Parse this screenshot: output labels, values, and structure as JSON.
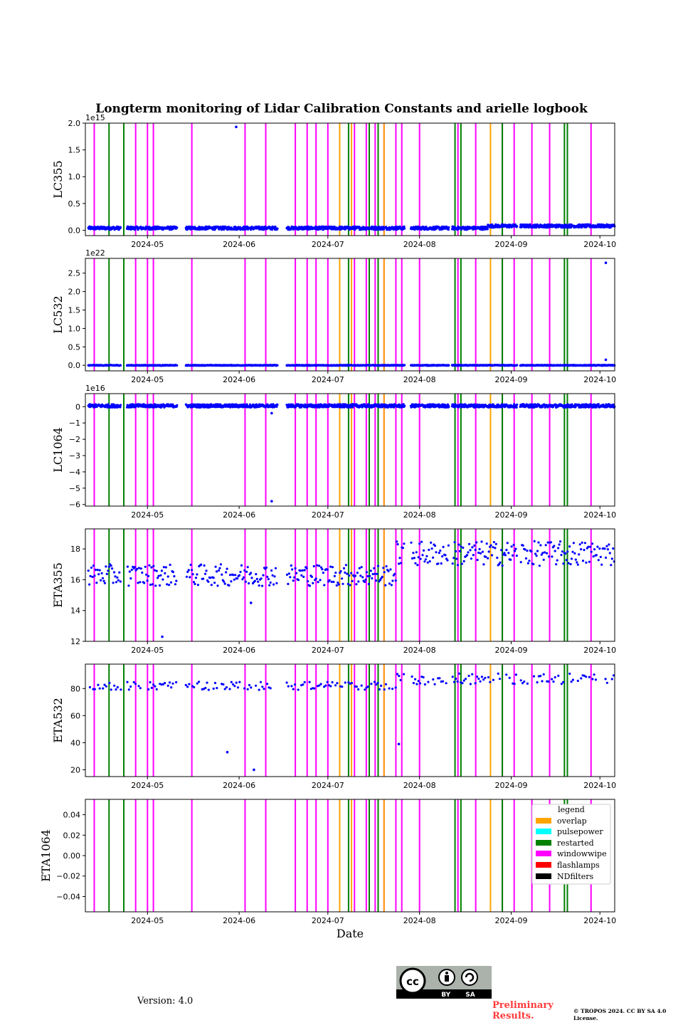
{
  "title": "Longterm monitoring of Lidar Calibration Constants and arielle logbook",
  "x_axis_label": "Date",
  "x_tick_labels": [
    "2024-05",
    "2024-06",
    "2024-07",
    "2024-08",
    "2024-09",
    "2024-10"
  ],
  "footer": {
    "version": "Version: 4.0",
    "preliminary": "Preliminary Results.",
    "copyright": "© TROPOS 2024. CC BY SA 4.0 License.",
    "cc_label": "BY SA"
  },
  "legend": {
    "title": "legend",
    "entries": [
      {
        "label": "overlap",
        "color": "#ffa500"
      },
      {
        "label": "pulsepower",
        "color": "#00ffff"
      },
      {
        "label": "restarted",
        "color": "#008000"
      },
      {
        "label": "windowwipe",
        "color": "#ff00ff"
      },
      {
        "label": "flashlamps",
        "color": "#ff0000"
      },
      {
        "label": "NDfilters",
        "color": "#000000"
      }
    ]
  },
  "chart_data": [
    {
      "type": "scatter",
      "ylabel": "LC355",
      "exponent": "1e15",
      "yticks": [
        "0.0",
        "0.5",
        "1.0",
        "1.5",
        "2.0"
      ],
      "ytick_values": [
        0,
        0.5,
        1.0,
        1.5,
        2.0
      ],
      "ylim": [
        -0.1,
        2.0
      ],
      "outliers": [
        {
          "x": "2024-05-31",
          "y": 1.93
        }
      ]
    },
    {
      "type": "scatter",
      "ylabel": "LC532",
      "exponent": "1e22",
      "yticks": [
        "0.0",
        "0.5",
        "1.0",
        "1.5",
        "2.0",
        "2.5"
      ],
      "ytick_values": [
        0,
        0.5,
        1.0,
        1.5,
        2.0,
        2.5
      ],
      "ylim": [
        -0.15,
        2.9
      ],
      "outliers": [
        {
          "x": "2024-10-03",
          "y": 2.78
        },
        {
          "x": "2024-10-03",
          "y": 0.15
        }
      ]
    },
    {
      "type": "scatter",
      "ylabel": "LC1064",
      "exponent": "1e16",
      "yticks": [
        "0",
        "−1",
        "−2",
        "−3",
        "−4",
        "−5",
        "−6"
      ],
      "ytick_values": [
        0,
        -1,
        -2,
        -3,
        -4,
        -5,
        -6
      ],
      "ylim": [
        -6.1,
        0.8
      ],
      "outliers": [
        {
          "x": "2024-06-12",
          "y": -5.8
        },
        {
          "x": "2024-06-12",
          "y": -0.4
        }
      ]
    },
    {
      "type": "scatter",
      "ylabel": "ETA355",
      "exponent": "",
      "yticks": [
        "12",
        "14",
        "16",
        "18"
      ],
      "ytick_values": [
        12,
        14,
        16,
        18
      ],
      "ylim": [
        12,
        19.3
      ],
      "outliers": [
        {
          "x": "2024-05-06",
          "y": 12.3
        },
        {
          "x": "2024-06-05",
          "y": 14.5
        }
      ]
    },
    {
      "type": "scatter",
      "ylabel": "ETA532",
      "exponent": "",
      "yticks": [
        "20",
        "40",
        "60",
        "80"
      ],
      "ytick_values": [
        20,
        40,
        60,
        80
      ],
      "ylim": [
        15,
        98
      ],
      "outliers": [
        {
          "x": "2024-05-28",
          "y": 33
        },
        {
          "x": "2024-06-06",
          "y": 20
        },
        {
          "x": "2024-07-25",
          "y": 39
        }
      ]
    },
    {
      "type": "scatter",
      "ylabel": "ETA1064",
      "exponent": "",
      "yticks": [
        "−0.04",
        "−0.02",
        "0.00",
        "0.02",
        "0.04"
      ],
      "ytick_values": [
        -0.04,
        -0.02,
        0,
        0.02,
        0.04
      ],
      "ylim": [
        -0.055,
        0.055
      ],
      "outliers": []
    }
  ],
  "events": {
    "windowwipe": [
      "2024-04-13",
      "2024-04-27",
      "2024-05-01",
      "2024-05-03",
      "2024-05-16",
      "2024-06-03",
      "2024-06-10",
      "2024-06-20",
      "2024-06-24",
      "2024-06-27",
      "2024-07-01",
      "2024-07-10",
      "2024-07-14",
      "2024-07-17",
      "2024-07-20",
      "2024-07-24",
      "2024-07-26",
      "2024-08-01",
      "2024-08-14",
      "2024-08-20",
      "2024-08-29",
      "2024-09-02",
      "2024-09-08",
      "2024-09-14",
      "2024-09-20",
      "2024-09-28"
    ],
    "restarted": [
      "2024-04-18",
      "2024-04-23",
      "2024-07-08",
      "2024-07-15",
      "2024-07-18",
      "2024-08-13",
      "2024-08-15",
      "2024-08-29",
      "2024-09-19",
      "2024-09-20"
    ],
    "overlap": [
      "2024-07-05",
      "2024-07-09",
      "2024-07-20",
      "2024-08-25"
    ]
  }
}
